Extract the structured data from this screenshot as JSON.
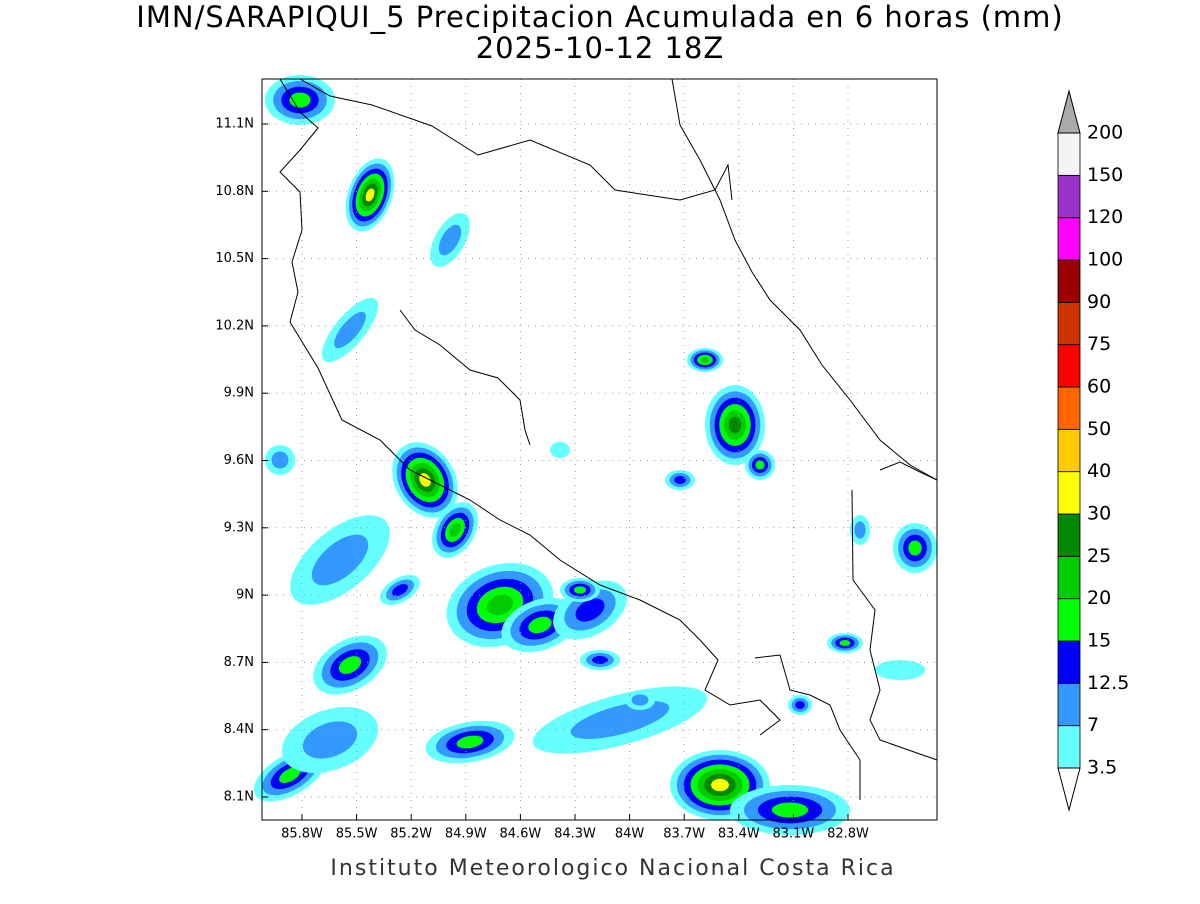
{
  "title": "IMN/SARAPIQUI_5 Precipitacion Acumulada en 6 horas (mm)",
  "subtitle": "2025-10-12 18Z",
  "map": {
    "lon_ticks": [
      "85.8W",
      "85.5W",
      "85.2W",
      "84.9W",
      "84.6W",
      "84.3W",
      "84W",
      "83.7W",
      "83.4W",
      "83.1W",
      "82.8W"
    ],
    "lat_ticks": [
      "11.1N",
      "10.8N",
      "10.5N",
      "10.2N",
      "9.9N",
      "9.6N",
      "9.3N",
      "9N",
      "8.7N",
      "8.4N",
      "8.1N"
    ]
  },
  "colorbar": {
    "levels": [
      3.5,
      7,
      12.5,
      15,
      20,
      25,
      30,
      40,
      50,
      60,
      75,
      90,
      100,
      120,
      150,
      200
    ],
    "colors": [
      "#66ffff",
      "#3399ff",
      "#0000ff",
      "#00ff00",
      "#00cc00",
      "#008800",
      "#ffff00",
      "#ffcc00",
      "#ff6600",
      "#ff0000",
      "#cc3300",
      "#990000",
      "#ff00ff",
      "#9933cc",
      "#f4f4f4"
    ]
  },
  "footer": "Instituto Meteorologico Nacional Costa Rica"
}
